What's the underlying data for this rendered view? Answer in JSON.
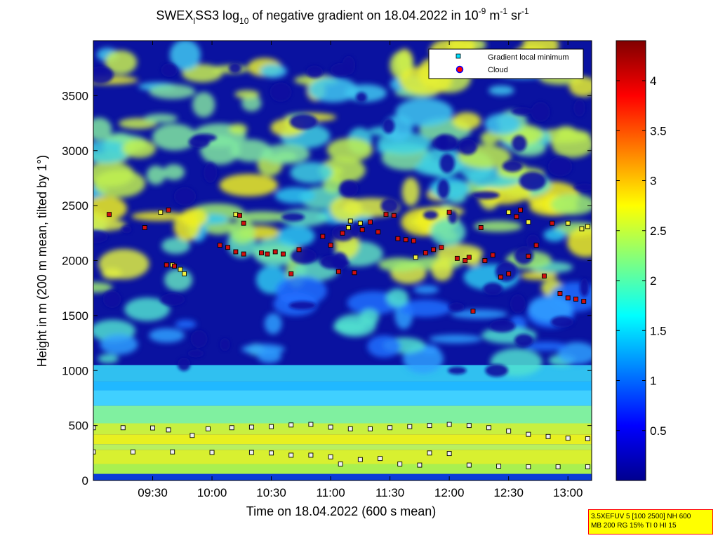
{
  "chart_data": {
    "type": "heatmap",
    "title": {
      "main": "SWEX",
      "main_sub": "l",
      "part2": "SS3 log",
      "log_sub": "10",
      "part3": " of negative gradient on 18.04.2022 in 10",
      "sup1": "-9",
      "part4": " m",
      "sup2": "-1",
      "part5": " sr",
      "sup3": "-1"
    },
    "xlabel": "Time on 18.04.2022 (600 s mean)",
    "ylabel": "Height in m (200 m mean, tilted by 1°)",
    "x_ticks": [
      "09:30",
      "10:00",
      "10:30",
      "11:00",
      "11:30",
      "12:00",
      "12:30",
      "13:00"
    ],
    "x_tick_minutes": [
      570,
      600,
      630,
      660,
      690,
      720,
      750,
      780
    ],
    "xlim_minutes": [
      540,
      792
    ],
    "y_ticks": [
      "0",
      "500",
      "1000",
      "1500",
      "2000",
      "2500",
      "3000",
      "3500"
    ],
    "y_tick_values": [
      0,
      500,
      1000,
      1500,
      2000,
      2500,
      3000,
      3500
    ],
    "ylim": [
      0,
      4000
    ],
    "colorbar": {
      "colormap": "jet",
      "range": [
        0,
        4.4
      ],
      "ticks": [
        "0.5",
        "1",
        "1.5",
        "2",
        "2.5",
        "3",
        "3.5",
        "4"
      ],
      "tick_values": [
        0.5,
        1,
        1.5,
        2,
        2.5,
        3,
        3.5,
        4
      ]
    },
    "legend": {
      "position": "top-right",
      "entries": [
        {
          "label": "Gradient local minimum",
          "color": "#00e0ff",
          "marker": "square"
        },
        {
          "label": "Cloud",
          "color": "#ff0000",
          "marker": "circle"
        }
      ]
    },
    "series": [
      {
        "name": "Gradient local minimum",
        "points": [
          [
            540,
            480
          ],
          [
            555,
            480
          ],
          [
            570,
            478
          ],
          [
            578,
            460
          ],
          [
            590,
            410
          ],
          [
            598,
            470
          ],
          [
            610,
            480
          ],
          [
            620,
            485
          ],
          [
            630,
            490
          ],
          [
            640,
            505
          ],
          [
            650,
            510
          ],
          [
            660,
            485
          ],
          [
            670,
            470
          ],
          [
            680,
            470
          ],
          [
            690,
            480
          ],
          [
            700,
            490
          ],
          [
            710,
            500
          ],
          [
            720,
            510
          ],
          [
            730,
            500
          ],
          [
            740,
            480
          ],
          [
            750,
            450
          ],
          [
            760,
            420
          ],
          [
            770,
            400
          ],
          [
            780,
            385
          ],
          [
            790,
            380
          ],
          [
            540,
            260
          ],
          [
            560,
            260
          ],
          [
            580,
            260
          ],
          [
            600,
            255
          ],
          [
            620,
            255
          ],
          [
            630,
            250
          ],
          [
            640,
            230
          ],
          [
            650,
            230
          ],
          [
            660,
            215
          ],
          [
            665,
            150
          ],
          [
            675,
            190
          ],
          [
            685,
            200
          ],
          [
            695,
            150
          ],
          [
            705,
            140
          ],
          [
            710,
            250
          ],
          [
            720,
            245
          ],
          [
            730,
            140
          ],
          [
            745,
            130
          ],
          [
            760,
            125
          ],
          [
            775,
            125
          ],
          [
            790,
            125
          ],
          [
            584,
            1920
          ],
          [
            586,
            1880
          ],
          [
            580,
            1960
          ],
          [
            574,
            2440
          ],
          [
            612,
            2420
          ],
          [
            669,
            2300
          ],
          [
            675,
            2340
          ],
          [
            670,
            2360
          ],
          [
            703,
            2030
          ],
          [
            750,
            2440
          ],
          [
            760,
            2350
          ],
          [
            780,
            2340
          ],
          [
            787,
            2290
          ],
          [
            790,
            2310
          ]
        ]
      },
      {
        "name": "Cloud",
        "points": [
          [
            548,
            2420
          ],
          [
            566,
            2300
          ],
          [
            577,
            1960
          ],
          [
            581,
            1950
          ],
          [
            578,
            2460
          ],
          [
            604,
            2140
          ],
          [
            608,
            2120
          ],
          [
            612,
            2080
          ],
          [
            616,
            2060
          ],
          [
            614,
            2410
          ],
          [
            616,
            2340
          ],
          [
            625,
            2070
          ],
          [
            628,
            2060
          ],
          [
            632,
            2080
          ],
          [
            636,
            2060
          ],
          [
            640,
            1880
          ],
          [
            644,
            2100
          ],
          [
            656,
            2220
          ],
          [
            660,
            2140
          ],
          [
            664,
            1900
          ],
          [
            666,
            2250
          ],
          [
            672,
            1890
          ],
          [
            676,
            2280
          ],
          [
            680,
            2350
          ],
          [
            684,
            2260
          ],
          [
            688,
            2420
          ],
          [
            692,
            2410
          ],
          [
            694,
            2200
          ],
          [
            698,
            2190
          ],
          [
            702,
            2180
          ],
          [
            708,
            2070
          ],
          [
            712,
            2100
          ],
          [
            716,
            2120
          ],
          [
            720,
            2440
          ],
          [
            724,
            2020
          ],
          [
            728,
            2000
          ],
          [
            730,
            2030
          ],
          [
            732,
            1540
          ],
          [
            736,
            2300
          ],
          [
            738,
            2000
          ],
          [
            742,
            2050
          ],
          [
            746,
            1850
          ],
          [
            750,
            1880
          ],
          [
            754,
            2400
          ],
          [
            756,
            2460
          ],
          [
            760,
            2040
          ],
          [
            764,
            2140
          ],
          [
            768,
            1860
          ],
          [
            772,
            2340
          ],
          [
            776,
            1700
          ],
          [
            780,
            1660
          ],
          [
            784,
            1650
          ],
          [
            788,
            1630
          ]
        ]
      }
    ]
  },
  "info_box": {
    "line1": "3.5XEFUV 5 [100 2500] NH 600",
    "line2": "MB 200 RG 15% TI 0 HI 15"
  }
}
